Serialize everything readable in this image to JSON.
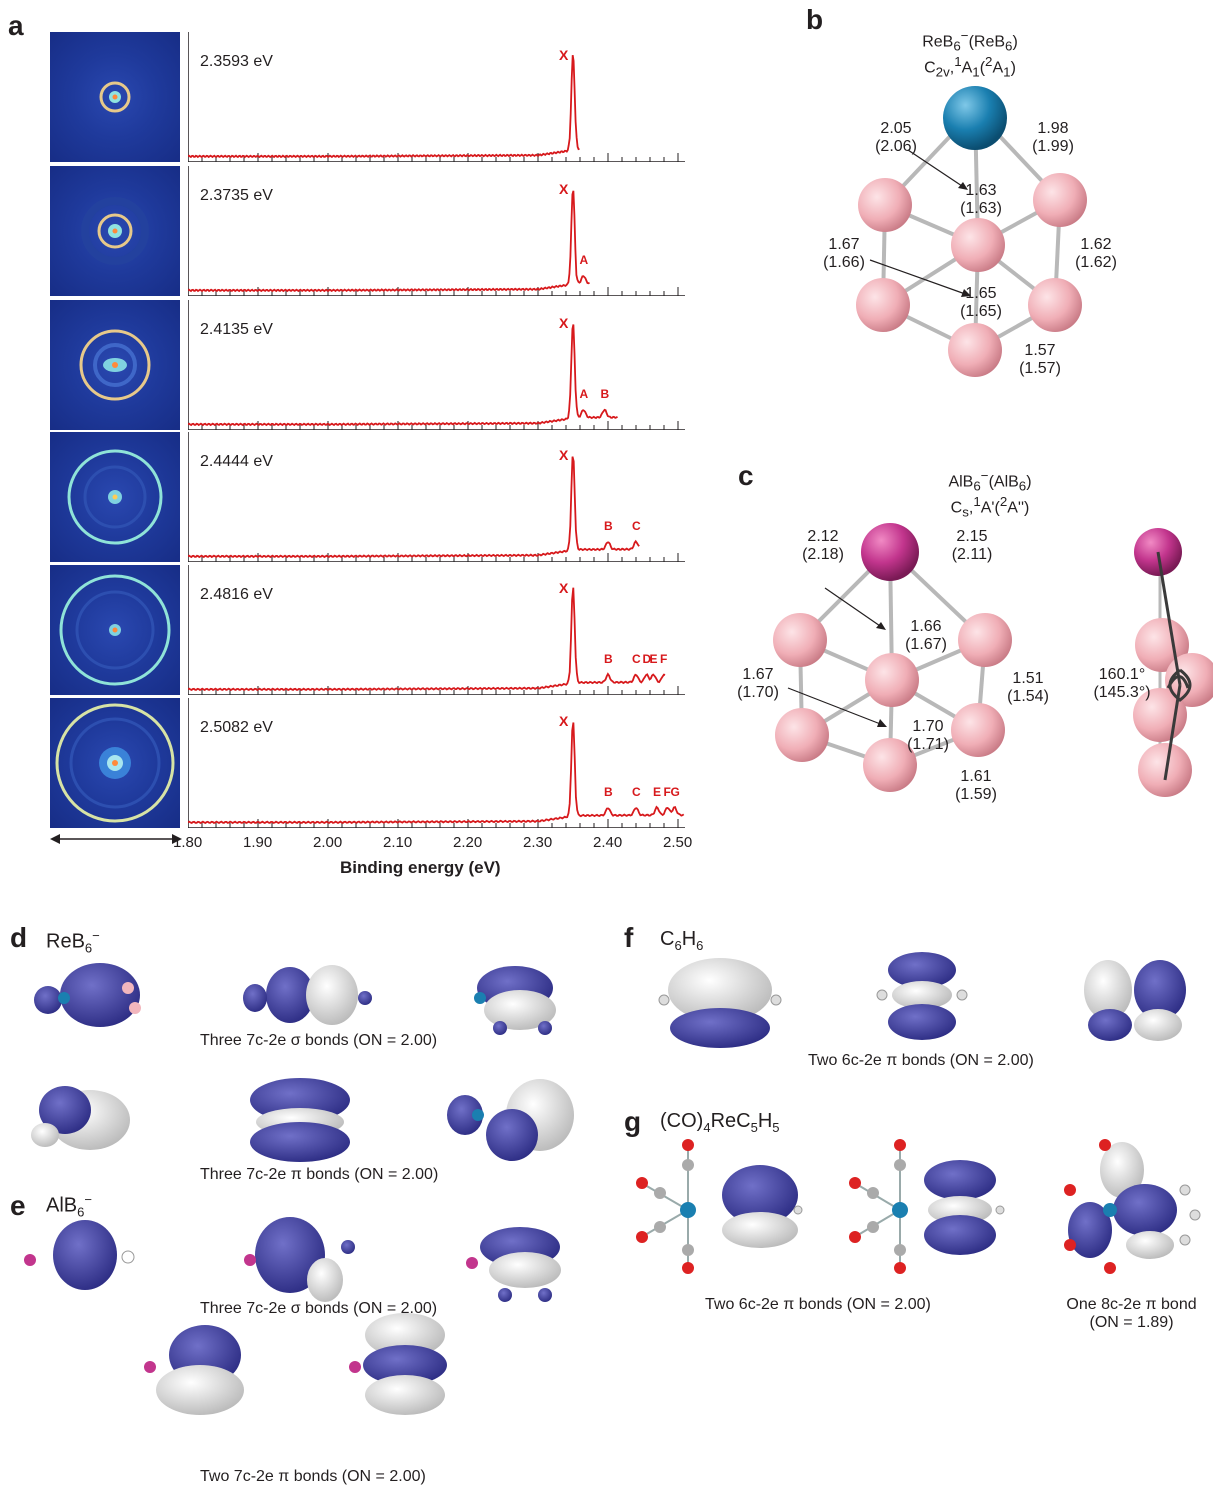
{
  "panels": {
    "a": "a",
    "b": "b",
    "c": "c",
    "d": "d",
    "e": "e",
    "f": "f",
    "g": "g"
  },
  "chart_data": {
    "type": "line",
    "xlabel": "Binding energy (eV)",
    "xlim": [
      1.8,
      2.51
    ],
    "x_ticks": [
      "1.80",
      "1.90",
      "2.00",
      "2.10",
      "2.20",
      "2.30",
      "2.40",
      "2.50"
    ],
    "series": [
      {
        "name": "2.3593 eV",
        "peaks": [
          {
            "label": "X",
            "x": 2.35
          }
        ]
      },
      {
        "name": "2.3735 eV",
        "peaks": [
          {
            "label": "X",
            "x": 2.35
          },
          {
            "label": "A",
            "x": 2.365
          }
        ]
      },
      {
        "name": "2.4135 eV",
        "peaks": [
          {
            "label": "X",
            "x": 2.35
          },
          {
            "label": "A",
            "x": 2.365
          },
          {
            "label": "B",
            "x": 2.395
          }
        ]
      },
      {
        "name": "2.4444 eV",
        "peaks": [
          {
            "label": "X",
            "x": 2.35
          },
          {
            "label": "B",
            "x": 2.4
          },
          {
            "label": "C",
            "x": 2.44
          }
        ]
      },
      {
        "name": "2.4816 eV",
        "peaks": [
          {
            "label": "X",
            "x": 2.35
          },
          {
            "label": "B",
            "x": 2.4
          },
          {
            "label": "C",
            "x": 2.44
          },
          {
            "label": "D",
            "x": 2.455
          },
          {
            "label": "E",
            "x": 2.465
          },
          {
            "label": "F",
            "x": 2.48
          }
        ]
      },
      {
        "name": "2.5082 eV",
        "peaks": [
          {
            "label": "X",
            "x": 2.35
          },
          {
            "label": "B",
            "x": 2.4
          },
          {
            "label": "C",
            "x": 2.44
          },
          {
            "label": "E",
            "x": 2.47
          },
          {
            "label": "F",
            "x": 2.485
          },
          {
            "label": "G",
            "x": 2.495
          }
        ]
      }
    ]
  },
  "panel_b": {
    "title1": "ReB6−(ReB6)",
    "title2": "C2v,1A1(2A1)",
    "labels": [
      "2.05",
      "(2.06)",
      "1.98",
      "(1.99)",
      "1.63",
      "(1.63)",
      "1.67",
      "(1.66)",
      "1.62",
      "(1.62)",
      "1.65",
      "(1.65)",
      "1.57",
      "(1.57)"
    ]
  },
  "panel_c": {
    "title1": "AlB6−(AlB6)",
    "title2": "Cs,1A'(2A'')",
    "labels": [
      "2.12",
      "(2.18)",
      "2.15",
      "(2.11)",
      "1.66",
      "(1.67)",
      "1.67",
      "(1.70)",
      "1.51",
      "(1.54)",
      "1.70",
      "(1.71)",
      "1.61",
      "(1.59)"
    ],
    "angle": "160.1°",
    "angle2": "(145.3°)"
  },
  "panel_d": {
    "title": "ReB6−",
    "caption_sigma": "Three 7c-2e σ bonds (ON = 2.00)",
    "caption_pi": "Three 7c-2e π bonds (ON = 2.00)"
  },
  "panel_e": {
    "title": "AlB6−",
    "caption_sigma": "Three 7c-2e σ bonds (ON = 2.00)",
    "caption_pi": "Two 7c-2e π bonds (ON = 2.00)"
  },
  "panel_f": {
    "title": "C6H6",
    "caption": "Two 6c-2e π bonds (ON = 2.00)"
  },
  "panel_g": {
    "title": "(CO)4ReC5H5",
    "caption1": "Two 6c-2e π bonds (ON = 2.00)",
    "caption2a": "One 8c-2e π bond",
    "caption2b": "(ON = 1.89)"
  },
  "colors": {
    "spectrum": "#d7191c",
    "vmi_bg": "#1f3a9c",
    "boron": "#f2b6bd",
    "rhenium": "#1a7fb0",
    "aluminum": "#c2358d",
    "orbital_blue": "#3a3a9a",
    "orbital_white": "#e8e8e8"
  }
}
